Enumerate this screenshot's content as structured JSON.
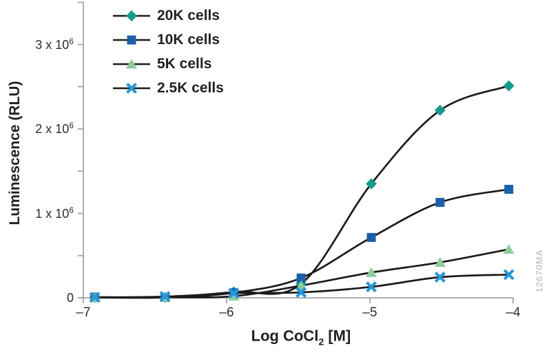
{
  "figure": {
    "watermark": "12670MA",
    "colors": {
      "axis": "#a3a3a3",
      "curve": "#1a1a1a",
      "text": "#231f20",
      "tick_text": "#2d2d2d",
      "watermark": "#b5b5b5"
    }
  },
  "chart_data": {
    "type": "line",
    "title": "",
    "xlabel": {
      "base": "Log CoCl",
      "sub": "2",
      "suffix": " [M]"
    },
    "ylabel": "Luminescence (RLU)",
    "xlim": [
      -7,
      -4
    ],
    "ylim": [
      0,
      3500000
    ],
    "grid": false,
    "legend_position": "top-left",
    "x_ticks": [
      {
        "value": -7,
        "label": "–7"
      },
      {
        "value": -6,
        "label": "–6"
      },
      {
        "value": -5,
        "label": "–5"
      },
      {
        "value": -4,
        "label": "–4"
      }
    ],
    "y_ticks_labeled": [
      {
        "value": 0,
        "base": "0",
        "sup": ""
      },
      {
        "value": 1000000,
        "base": "1 x 10",
        "sup": "6"
      },
      {
        "value": 2000000,
        "base": "2 x 10",
        "sup": "6"
      },
      {
        "value": 3000000,
        "base": "3 x 10",
        "sup": "6"
      }
    ],
    "y_ticks_minor": [
      500000,
      1500000,
      2500000,
      3500000
    ],
    "x": [
      -6.92,
      -6.43,
      -5.95,
      -5.48,
      -4.99,
      -4.51,
      -4.03
    ],
    "series": [
      {
        "name": "20K cells",
        "marker": "diamond",
        "color": "#169a8c",
        "values": [
          5000,
          5000,
          70000,
          165000,
          1350000,
          2220000,
          2510000
        ]
      },
      {
        "name": "10K cells",
        "marker": "square",
        "color": "#1b5fa8",
        "values": [
          8000,
          5000,
          60000,
          235000,
          715000,
          1130000,
          1285000
        ]
      },
      {
        "name": "5K cells",
        "marker": "triangle",
        "color": "#90cb9d",
        "values": [
          3000,
          5000,
          20000,
          145000,
          300000,
          420000,
          575000
        ]
      },
      {
        "name": "2.5K cells",
        "marker": "x",
        "color": "#2897d8",
        "values": [
          6000,
          15000,
          55000,
          65000,
          130000,
          245000,
          275000
        ]
      }
    ]
  }
}
